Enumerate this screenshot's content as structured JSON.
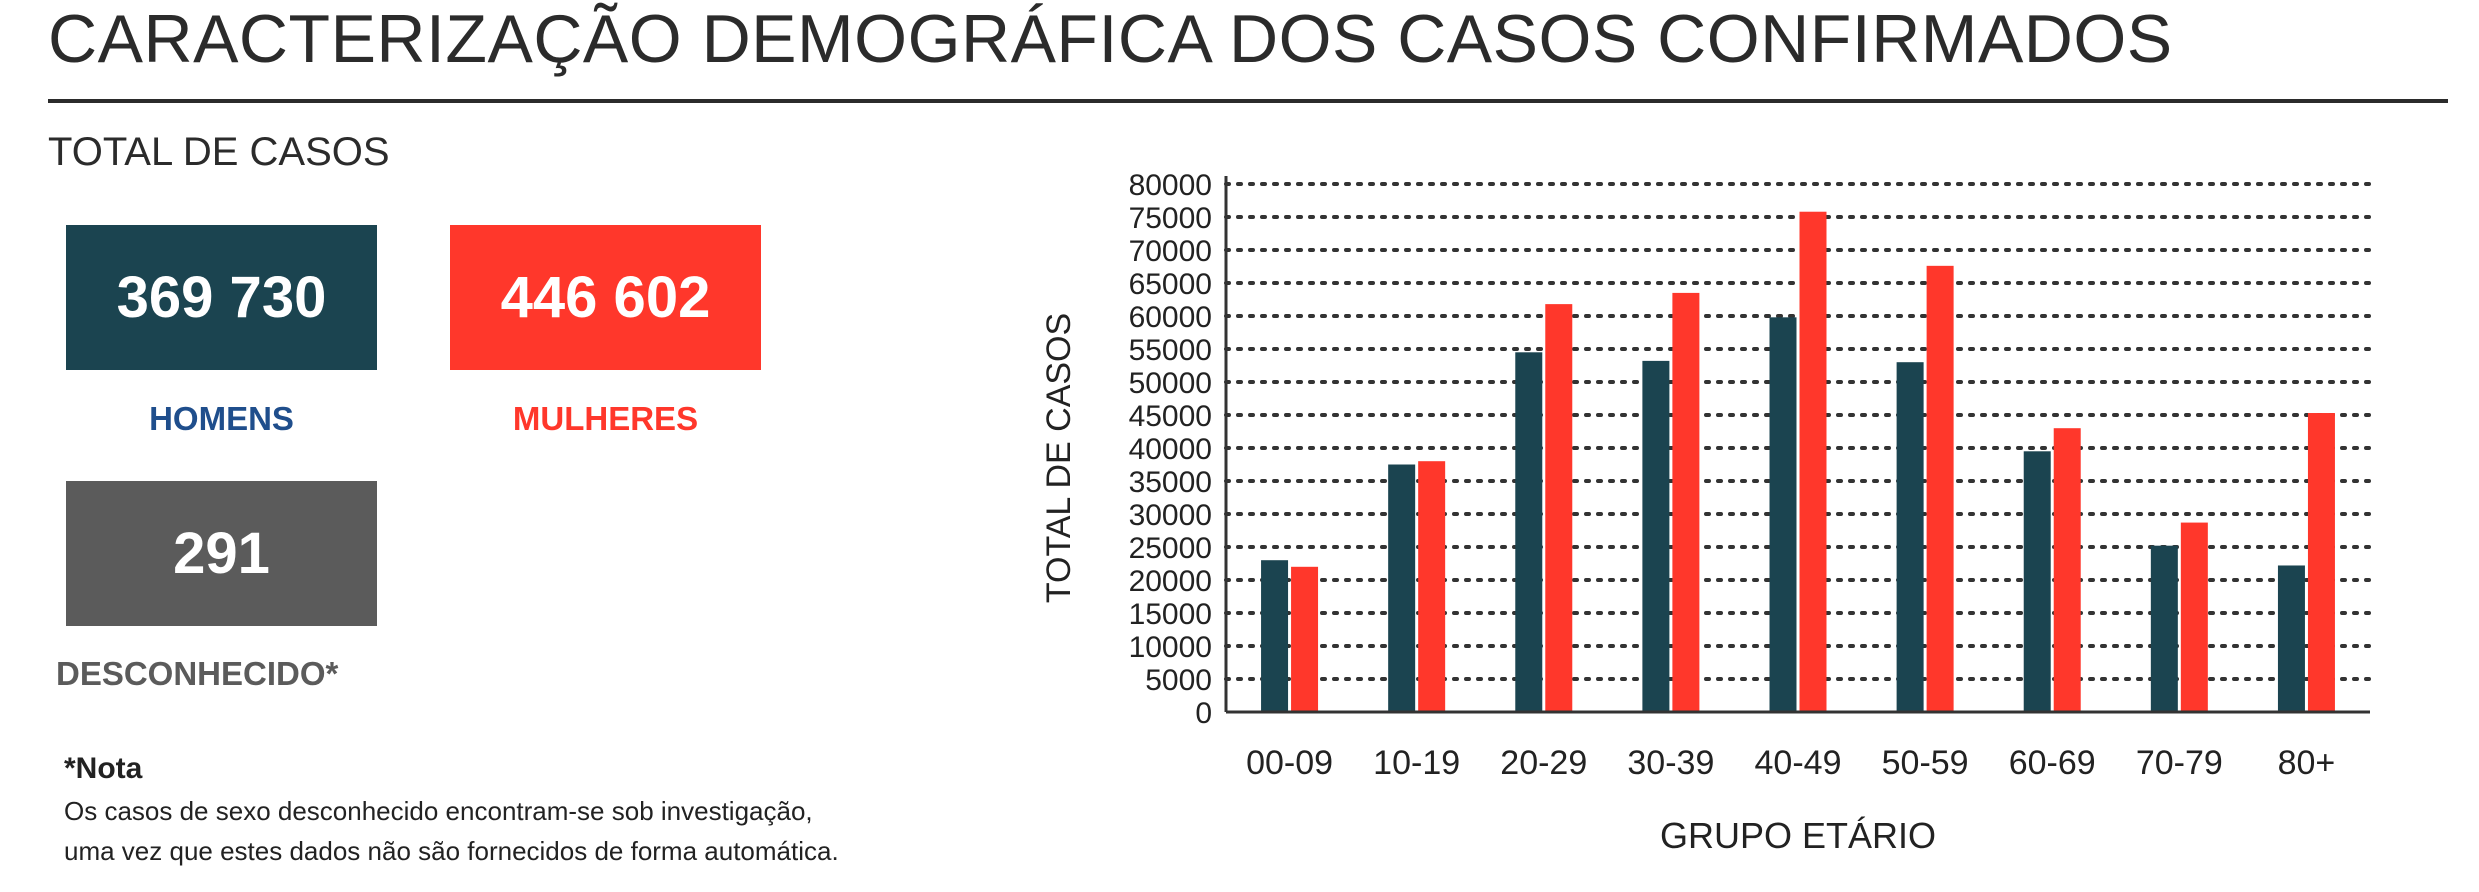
{
  "title": "CARACTERIZAÇÃO DEMOGRÁFICA DOS CASOS CONFIRMADOS",
  "totals": {
    "heading": "TOTAL DE CASOS",
    "men": {
      "value": "369 730",
      "label": "HOMENS",
      "color": "#1b4450",
      "label_color": "#1f4e8c"
    },
    "women": {
      "value": "446 602",
      "label": "MULHERES",
      "color": "#ff372b",
      "label_color": "#ff372b"
    },
    "unknown": {
      "value": "291",
      "label": "DESCONHECIDO*",
      "color": "#5b5b5b",
      "label_color": "#5b5b5b"
    }
  },
  "note": {
    "title": "*Nota",
    "line1": "Os casos de sexo desconhecido encontram-se sob investigação,",
    "line2": "uma vez que estes dados não são fornecidos de forma automática."
  },
  "chart_data": {
    "type": "bar",
    "categories": [
      "00-09",
      "10-19",
      "20-29",
      "30-39",
      "40-49",
      "50-59",
      "60-69",
      "70-79",
      "80+"
    ],
    "series": [
      {
        "color": "#1b4450",
        "values": [
          23000,
          37500,
          54500,
          53200,
          59800,
          53000,
          39500,
          25200,
          22200
        ]
      },
      {
        "color": "#ff372b",
        "values": [
          22000,
          38000,
          61800,
          63500,
          75800,
          67600,
          43000,
          28700,
          45300
        ]
      }
    ],
    "xlabel": "GRUPO ETÁRIO",
    "ylabel": "TOTAL DE CASOS",
    "ylim": [
      0,
      80000
    ],
    "yticks": [
      "0",
      "5000",
      "10000",
      "15000",
      "20000",
      "25000",
      "30000",
      "35000",
      "40000",
      "45000",
      "50000",
      "55000",
      "60000",
      "65000",
      "70000",
      "75000",
      "80000"
    ],
    "grid": "dotted-horizontal"
  }
}
